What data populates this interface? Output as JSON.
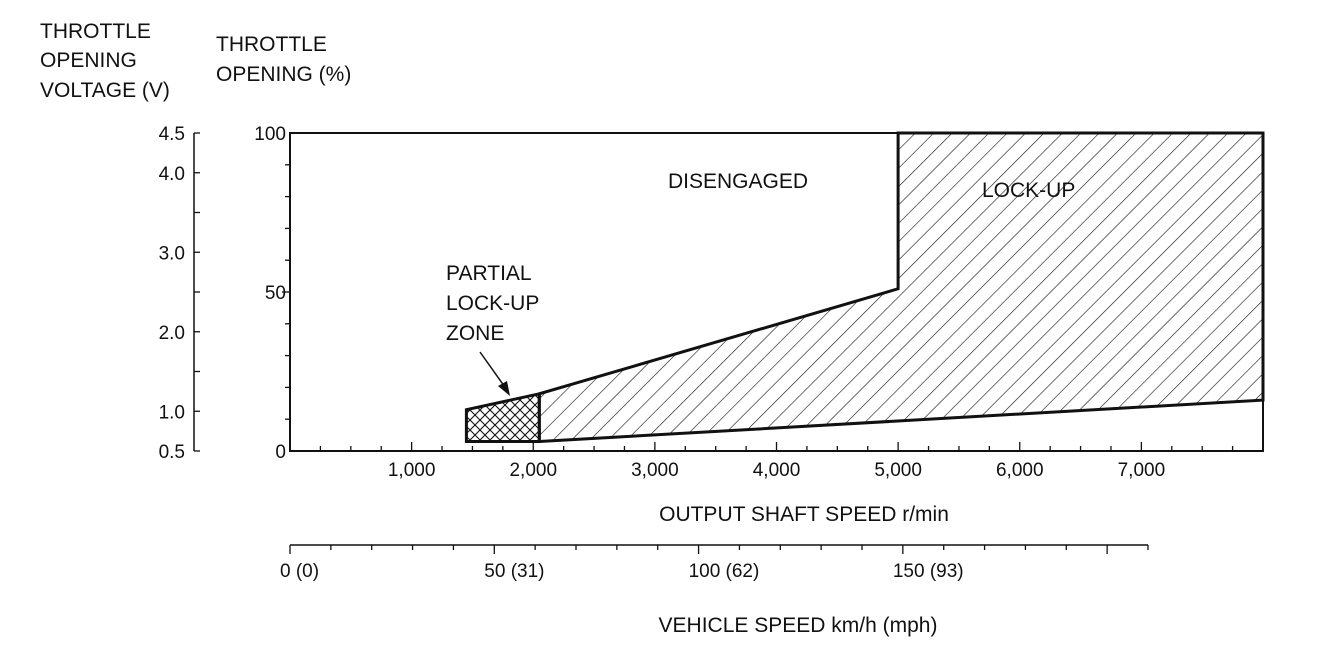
{
  "header": {
    "voltage_title": [
      "THROTTLE",
      "OPENING",
      "VOLTAGE (V)"
    ],
    "opening_title": [
      "THROTTLE",
      "OPENING (%)"
    ]
  },
  "chart_data": {
    "type": "area",
    "x_axis": {
      "label": "OUTPUT SHAFT SPEED r/min",
      "ticks": [
        0,
        1000,
        2000,
        3000,
        4000,
        5000,
        6000,
        7000
      ],
      "tick_labels": [
        "1,000",
        "2,000",
        "3,000",
        "4,000",
        "5,000",
        "6,000",
        "7,000"
      ],
      "range": [
        0,
        8000
      ]
    },
    "y_axis": {
      "label": "THROTTLE OPENING (%)",
      "ticks": [
        0,
        50,
        100
      ],
      "tick_labels": [
        "0",
        "50",
        "100"
      ],
      "range": [
        0,
        100
      ]
    },
    "voltage_axis": {
      "label": "THROTTLE OPENING VOLTAGE (V)",
      "ticks": [
        0.5,
        1.0,
        2.0,
        3.0,
        4.0,
        4.5
      ],
      "tick_labels": [
        "0.5",
        "1.0",
        "2.0",
        "3.0",
        "4.0",
        "4.5"
      ],
      "minor_ticks": [
        1.5,
        2.5,
        3.5
      ]
    },
    "vehicle_axis": {
      "label": "VEHICLE SPEED km/h (mph)",
      "ticks": [
        0,
        50,
        100,
        150
      ],
      "tick_labels": [
        "0 (0)",
        "50 (31)",
        "100 (62)",
        "150 (93)"
      ],
      "range_kmh": [
        0,
        210
      ]
    },
    "regions": [
      {
        "name": "PARTIAL LOCK-UP ZONE",
        "label_lines": [
          "PARTIAL",
          "LOCK-UP",
          "ZONE"
        ],
        "fill": "crosshatch",
        "points": [
          [
            1450,
            3
          ],
          [
            2050,
            3
          ],
          [
            2050,
            18
          ],
          [
            1450,
            13
          ]
        ]
      },
      {
        "name": "LOCK-UP",
        "label_lines": [
          "LOCK-UP"
        ],
        "fill": "hatch",
        "points": [
          [
            2050,
            3
          ],
          [
            8000,
            16
          ],
          [
            8000,
            100
          ],
          [
            5000,
            100
          ],
          [
            5000,
            51
          ],
          [
            2050,
            18
          ]
        ]
      },
      {
        "name": "DISENGAGED",
        "label_lines": [
          "DISENGAGED"
        ],
        "fill": "none"
      }
    ],
    "grid": false
  }
}
